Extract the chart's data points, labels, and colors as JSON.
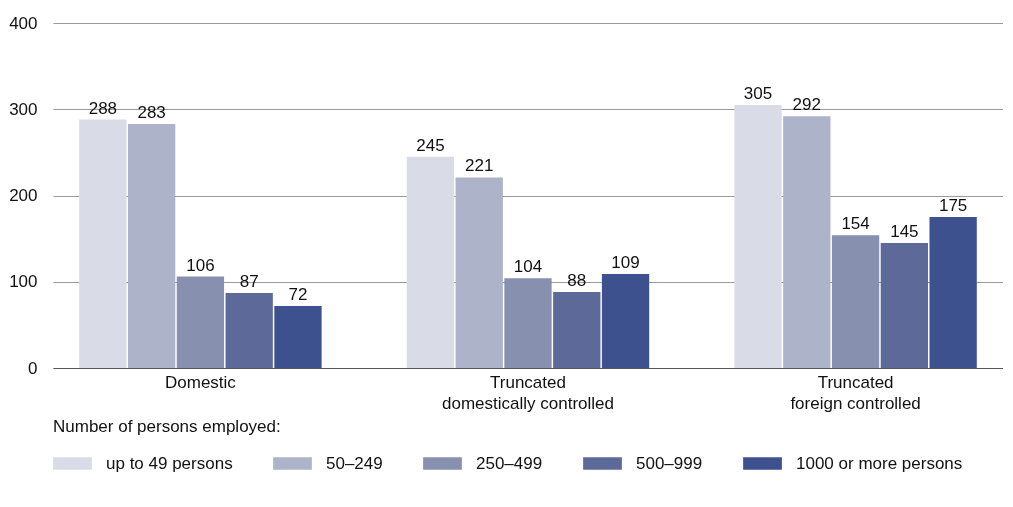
{
  "chart_data": {
    "type": "bar",
    "categories": [
      "Domestic",
      "Truncated domestically controlled",
      "Truncated foreign controlled"
    ],
    "series": [
      {
        "name": "up to 49 persons",
        "color": "#d9dce6",
        "values": [
          288,
          245,
          305
        ]
      },
      {
        "name": "50–249",
        "color": "#adb4c9",
        "values": [
          283,
          221,
          292
        ]
      },
      {
        "name": "250–499",
        "color": "#8790ae",
        "values": [
          106,
          104,
          154
        ]
      },
      {
        "name": "500–999",
        "color": "#5d6a99",
        "values": [
          87,
          88,
          145
        ]
      },
      {
        "name": "1000 or more persons",
        "color": "#3e518f",
        "values": [
          72,
          109,
          175
        ]
      }
    ],
    "ylim": [
      0,
      400
    ],
    "yticks": [
      0,
      100,
      200,
      300,
      400
    ],
    "grid": "y",
    "data_labels": true,
    "legend": "bottom",
    "legend_title": "Number of persons employed:"
  }
}
